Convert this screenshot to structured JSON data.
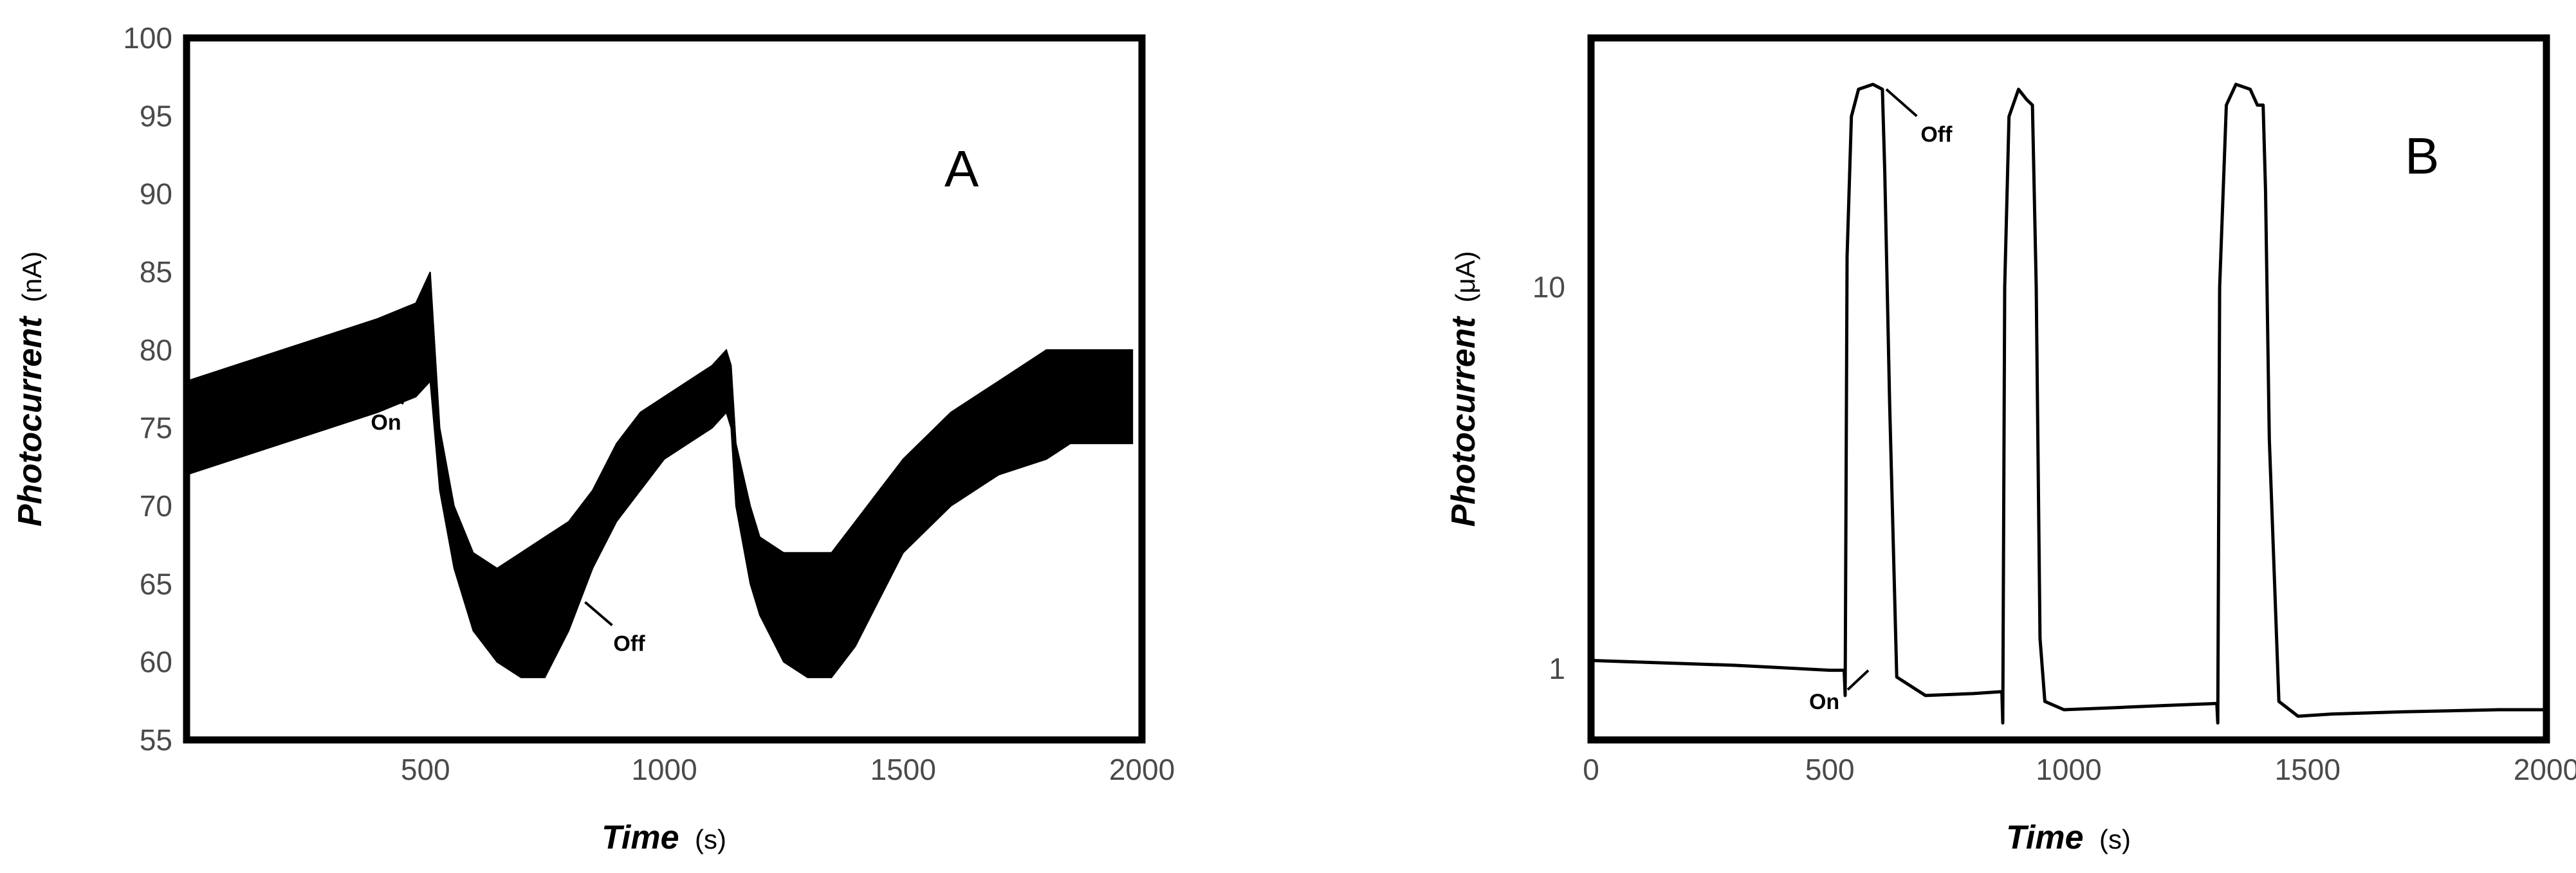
{
  "chart_data": [
    {
      "type": "line",
      "panel_label": "A",
      "xlabel": "Time",
      "xlabel_unit": "(s)",
      "ylabel": "Photocurrent",
      "ylabel_unit": "(nA)",
      "xlim": [
        0,
        2000
      ],
      "ylim": [
        55,
        100
      ],
      "x_ticks": [
        500,
        1000,
        1500,
        2000
      ],
      "y_ticks": [
        55,
        60,
        65,
        70,
        75,
        80,
        85,
        90,
        95,
        100
      ],
      "grid": false,
      "envelope_note": "noisy trace oscillating between low and high envelopes",
      "series": [
        {
          "x": [
            0,
            100,
            200,
            300,
            400,
            480,
            510,
            530,
            560,
            600,
            650,
            700,
            750,
            800,
            850,
            900,
            950,
            1000,
            1050,
            1100,
            1130,
            1140,
            1150,
            1180,
            1200,
            1250,
            1300,
            1350,
            1400,
            1450,
            1500,
            1600,
            1700,
            1800,
            1850,
            1900,
            1950,
            1980
          ],
          "low": [
            72,
            73,
            74,
            75,
            76,
            77,
            78,
            71,
            66,
            62,
            60,
            59,
            59,
            62,
            66,
            69,
            71,
            73,
            74,
            75,
            76,
            75,
            70,
            65,
            63,
            60,
            59,
            59,
            61,
            64,
            67,
            70,
            72,
            73,
            74,
            74,
            74,
            74
          ],
          "high": [
            78,
            79,
            80,
            81,
            82,
            83,
            85,
            75,
            70,
            67,
            66,
            67,
            68,
            69,
            71,
            74,
            76,
            77,
            78,
            79,
            80,
            79,
            74,
            70,
            68,
            67,
            67,
            67,
            69,
            71,
            73,
            76,
            78,
            80,
            80,
            80,
            80,
            80
          ]
        }
      ],
      "annotations": [
        {
          "text": "On",
          "x": 480,
          "y": 79
        },
        {
          "text": "Off",
          "x": 810,
          "y": 64
        }
      ]
    },
    {
      "type": "line",
      "panel_label": "B",
      "xlabel": "Time",
      "xlabel_unit": "(s)",
      "ylabel": "Photocurrent",
      "ylabel_unit": "(μA)",
      "yscale": "log",
      "xlim": [
        0,
        2000
      ],
      "ylim": [
        0.65,
        45
      ],
      "x_ticks": [
        0,
        500,
        1000,
        1500,
        2000
      ],
      "y_ticks": [
        1,
        10
      ],
      "grid": false,
      "series": [
        {
          "x": [
            0,
            100,
            300,
            500,
            530,
            532,
            536,
            545,
            560,
            590,
            610,
            615,
            625,
            640,
            700,
            800,
            860,
            862,
            866,
            875,
            895,
            912,
            924,
            932,
            940,
            950,
            990,
            1100,
            1200,
            1310,
            1312,
            1316,
            1330,
            1350,
            1380,
            1395,
            1407,
            1412,
            1420,
            1440,
            1480,
            1550,
            1700,
            1900,
            2000
          ],
          "y": [
            1.05,
            1.04,
            1.02,
            0.99,
            0.99,
            0.85,
            12,
            28,
            33,
            34,
            33,
            20,
            5,
            0.95,
            0.85,
            0.86,
            0.87,
            0.72,
            10,
            28,
            33,
            31,
            30,
            10,
            1.2,
            0.82,
            0.78,
            0.79,
            0.8,
            0.81,
            0.72,
            10,
            30,
            34,
            33,
            30,
            30,
            18,
            4,
            0.82,
            0.75,
            0.76,
            0.77,
            0.78,
            0.78
          ]
        }
      ],
      "annotations": [
        {
          "text": "On",
          "x": 470,
          "y": 0.86
        },
        {
          "text": "Off",
          "x": 690,
          "y": 27
        }
      ]
    }
  ]
}
